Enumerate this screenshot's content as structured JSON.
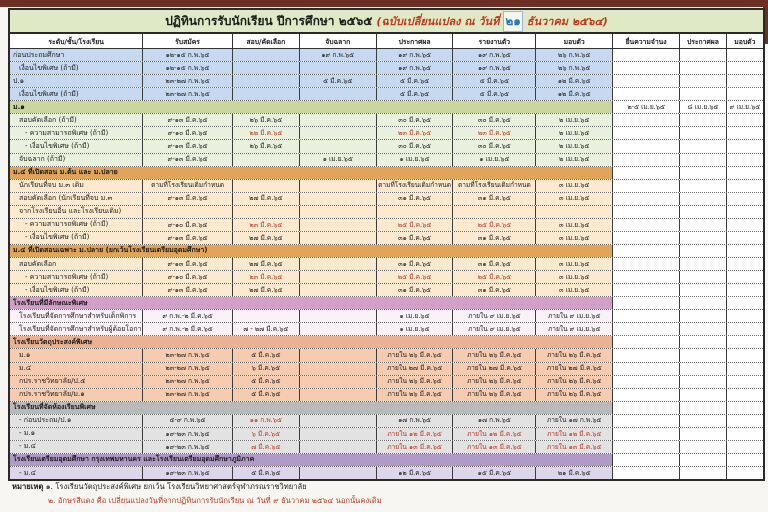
{
  "title": {
    "main": "ปฏิทินการรับนักเรียน  ปีการศึกษา ๒๕๖๕",
    "change_prefix": "(ฉบับเปลี่ยนแปลง ณ วันที่",
    "change_day": "๒๑",
    "change_suffix": "ธันวาคม ๒๕๖๔)"
  },
  "columns": [
    "ระดับ/ชั้น/โรงเรียน",
    "รับสมัคร",
    "สอบ/คัดเลือก",
    "จับฉลาก",
    "ประกาศผล",
    "รายงานตัว",
    "มอบตัว",
    "ยื่นความจำนง",
    "ประกาศผล",
    "มอบตัว"
  ],
  "colors": {
    "changed_date_red": "#bb3a23",
    "inserted_day_blue": "#2f76b5",
    "title_band_green": "#dfe9c6",
    "scan_edge_maroon": "#6d2f23",
    "sections": {
      "blue": "#c7d9f1",
      "green_head": "#c9d79f",
      "green": "#eaf0de",
      "orange_head": "#e2a458",
      "cream": "#fbead0",
      "pink_head": "#d39fc6",
      "pink": "#faf2f7",
      "salmon_head": "#eab193",
      "salmon": "#f7cbb0",
      "gray_head": "#b9b9b9",
      "gray": "#e2e2e2",
      "purple_head": "#b09bc8",
      "purple": "#ddd5ea"
    }
  },
  "rows": [
    {
      "style": "blue",
      "indent": 0,
      "label": "ก่อนประถมศึกษา",
      "cells": [
        "๑๒-๑๕ ก.พ.๖๕",
        "",
        "๑๙ ก.พ.๖๕",
        "๑๙ ก.พ.๖๕",
        "๑๙ ก.พ.๖๕",
        "๒๖ ก.พ.๖๕",
        "",
        "",
        ""
      ],
      "red": []
    },
    {
      "style": "blue",
      "indent": 1,
      "label": "เงื่อนไขพิเศษ (ถ้ามี)",
      "cells": [
        "๑๒-๑๕ ก.พ.๖๕",
        "",
        "",
        "๑๙ ก.พ.๖๕",
        "๑๙ ก.พ.๖๕",
        "๒๖ ก.พ.๖๕",
        "",
        "",
        ""
      ],
      "red": []
    },
    {
      "style": "blue",
      "indent": 0,
      "label": "ป.๑",
      "cells": [
        "๒๓-๒๗ ก.พ.๖๕",
        "",
        "๕ มี.ค.๖๕",
        "๕ มี.ค.๖๕",
        "๕ มี.ค.๖๕",
        "๑๒ มี.ค.๖๕",
        "",
        "",
        ""
      ],
      "red": []
    },
    {
      "style": "blue",
      "indent": 1,
      "label": "เงื่อนไขพิเศษ (ถ้ามี)",
      "cells": [
        "๒๓-๒๗ ก.พ.๖๕",
        "",
        "",
        "๕ มี.ค.๖๕",
        "๕ มี.ค.๖๕",
        "๑๒ มี.ค.๖๕",
        "",
        "",
        ""
      ],
      "red": []
    },
    {
      "type": "section",
      "style": "green_head",
      "label": "ม.๑",
      "tail": [
        "๒-๕ เม.ย.๖๕",
        "๘ เม.ย.๖๕",
        "๙ เม.ย.๖๕"
      ]
    },
    {
      "style": "green",
      "indent": 1,
      "label": "สอบคัดเลือก (ถ้ามี)",
      "cells": [
        "๙-๑๓ มี.ค.๖๕",
        "๒๖ มี.ค.๖๕",
        "",
        "๓๐ มี.ค.๖๕",
        "๓๐ มี.ค.๖๕",
        "๒ เม.ย.๖๕",
        "",
        "",
        ""
      ],
      "red": []
    },
    {
      "style": "green",
      "indent": 2,
      "label": "- ความสามารถพิเศษ  (ถ้ามี)",
      "cells": [
        "๙-๑๐ มี.ค.๖๕",
        "๒๒ มี.ค.๖๕",
        "",
        "๒๓ มี.ค.๖๕",
        "๒๓ มี.ค.๖๕",
        "๒ เม.ย.๖๕",
        "",
        "",
        ""
      ],
      "red": [
        1,
        3,
        4
      ]
    },
    {
      "style": "green",
      "indent": 2,
      "label": "- เงื่อนไขพิเศษ (ถ้ามี)",
      "cells": [
        "๙-๑๓ มี.ค.๖๕",
        "๒๖ มี.ค.๖๕",
        "",
        "๓๐ มี.ค.๖๕",
        "๓๐ มี.ค.๖๕",
        "๒ เม.ย.๖๕",
        "",
        "",
        ""
      ],
      "red": []
    },
    {
      "style": "green",
      "indent": 1,
      "label": "จับฉลาก (ถ้ามี)",
      "cells": [
        "๙-๑๓ มี.ค.๖๕",
        "",
        "๑ เม.ย.๖๕",
        "๑ เม.ย.๖๕",
        "๑ เม.ย.๖๕",
        "๒ เม.ย.๖๕",
        "",
        "",
        ""
      ],
      "red": []
    },
    {
      "type": "section",
      "style": "orange_head",
      "label": "ม.๔ ที่เปิดสอน ม.ต้น และ ม.ปลาย",
      "tail": [
        "",
        "",
        ""
      ]
    },
    {
      "style": "cream",
      "indent": 1,
      "label": "นักเรียนที่จบ ม.๓ เดิม",
      "cells": [
        "ตามที่โรงเรียนเดิมกำหนด",
        "",
        "",
        "ตามที่โรงเรียนเดิมกำหนด",
        "ตามที่โรงเรียนเดิมกำหนด",
        "๓ เม.ย.๖๕",
        "",
        "",
        ""
      ],
      "red": []
    },
    {
      "style": "cream",
      "indent": 1,
      "label": "สอบคัดเลือก (นักเรียนที่จบ ม.๓",
      "cells": [
        "๙-๑๓ มี.ค.๖๕",
        "๒๗ มี.ค.๖๕",
        "",
        "๓๑ มี.ค.๖๕",
        "๓๑ มี.ค.๖๕",
        "๓ เม.ย.๖๕",
        "",
        "",
        ""
      ],
      "red": []
    },
    {
      "style": "cream",
      "indent": 1,
      "label": "จากโรงเรียนอื่น และโรงเรียนเดิม)",
      "cells": [
        "",
        "",
        "",
        "",
        "",
        "",
        "",
        "",
        ""
      ],
      "red": []
    },
    {
      "style": "cream",
      "indent": 2,
      "label": "- ความสามารถพิเศษ  (ถ้ามี)",
      "cells": [
        "๙-๑๐ มี.ค.๖๕",
        "๒๓ มี.ค.๖๕",
        "",
        "๒๕ มี.ค.๖๕",
        "๒๕ มี.ค.๖๕",
        "๓ เม.ย.๖๕",
        "",
        "",
        ""
      ],
      "red": [
        1,
        3,
        4
      ]
    },
    {
      "style": "cream",
      "indent": 2,
      "label": "- เงื่อนไขพิเศษ (ถ้ามี)",
      "cells": [
        "๙-๑๓ มี.ค.๖๕",
        "๒๗ มี.ค.๖๕",
        "",
        "๓๑ มี.ค.๖๕",
        "๓๑ มี.ค.๖๕",
        "๓ เม.ย.๖๕",
        "",
        "",
        ""
      ],
      "red": []
    },
    {
      "type": "section",
      "style": "orange_head",
      "label": "ม.๔ ที่เปิดสอนเฉพาะ ม.ปลาย (ยกเว้นโรงเรียนเตรียมอุดมศึกษา)",
      "tail": [
        "",
        "",
        ""
      ]
    },
    {
      "style": "cream",
      "indent": 1,
      "label": "สอบคัดเลือก",
      "cells": [
        "๙-๑๓ มี.ค.๖๕",
        "๒๗ มี.ค.๖๕",
        "",
        "๓๑ มี.ค.๖๕",
        "๓๑ มี.ค.๖๕",
        "๓ เม.ย.๖๕",
        "",
        "",
        ""
      ],
      "red": []
    },
    {
      "style": "cream",
      "indent": 2,
      "label": "- ความสามารถพิเศษ  (ถ้ามี)",
      "cells": [
        "๙-๑๐ มี.ค.๖๕",
        "๒๓ มี.ค.๖๕",
        "",
        "๒๕ มี.ค.๖๕",
        "๒๕ มี.ค.๖๕",
        "๓ เม.ย.๖๕",
        "",
        "",
        ""
      ],
      "red": [
        1,
        3,
        4
      ]
    },
    {
      "style": "cream",
      "indent": 2,
      "label": "- เงื่อนไขพิเศษ (ถ้ามี)",
      "cells": [
        "๙-๑๓ มี.ค.๖๕",
        "๒๗ มี.ค.๖๕",
        "",
        "๓๑ มี.ค.๖๕",
        "๓๑ มี.ค.๖๕",
        "๓ เม.ย.๖๕",
        "",
        "",
        ""
      ],
      "red": []
    },
    {
      "type": "section",
      "style": "pink_head",
      "label": "โรงเรียนที่มีลักษณะพิเศษ",
      "tail": [
        "",
        "",
        ""
      ]
    },
    {
      "style": "pink",
      "indent": 1,
      "label": "โรงเรียนที่จัดการศึกษาสำหรับเด็กพิการ",
      "cells": [
        "๙ ก.พ.-๒ มี.ค.๖๕",
        "",
        "",
        "๑ เม.ย.๖๕",
        "ภายใน ๙ เม.ย.๖๕",
        "ภายใน ๙ เม.ย.๖๕",
        "",
        "",
        ""
      ],
      "red": []
    },
    {
      "style": "pink",
      "indent": 1,
      "label": "โรงเรียนที่จัดการศึกษาสำหรับผู้ด้อยโอกาส",
      "cells": [
        "๙ ก.พ.-๒ มี.ค.๖๕",
        "๗ - ๒๗ มี.ค.๖๕",
        "",
        "๑ เม.ย.๖๕",
        "ภายใน ๙ เม.ย.๖๕",
        "ภายใน ๙ เม.ย.๖๕",
        "",
        "",
        ""
      ],
      "red": []
    },
    {
      "type": "section",
      "style": "salmon_head",
      "label": "โรงเรียนวัตถุประสงค์พิเศษ",
      "tail": [
        "",
        "",
        ""
      ]
    },
    {
      "style": "salmon",
      "indent": 1,
      "label": "ม.๑",
      "cells": [
        "๒๓-๒๗ ก.พ.๖๕",
        "๕ มี.ค.๖๕",
        "",
        "ภายใน ๒๖ มี.ค.๖๕",
        "ภายใน ๒๖ มี.ค.๖๕",
        "ภายใน ๒๖ มี.ค.๖๕",
        "",
        "",
        ""
      ],
      "red": []
    },
    {
      "style": "salmon",
      "indent": 1,
      "label": "ม.๔",
      "cells": [
        "๒๓-๒๗ ก.พ.๖๕",
        "๖ มี.ค.๖๕",
        "",
        "ภายใน ๒๗ มี.ค.๖๕",
        "ภายใน ๒๗ มี.ค.๖๕",
        "ภายใน ๒๗ มี.ค.๖๕",
        "",
        "",
        ""
      ],
      "red": []
    },
    {
      "style": "salmon",
      "indent": 1,
      "label": "กปร.ราชวิทยาลัย/ป.๕",
      "cells": [
        "๒๓-๒๗ ก.พ.๖๕",
        "๕ มี.ค.๖๕",
        "",
        "ภายใน ๒๖ มี.ค.๖๕",
        "ภายใน ๒๖ มี.ค.๖๕",
        "ภายใน ๒๖ มี.ค.๖๕",
        "",
        "",
        ""
      ],
      "red": []
    },
    {
      "style": "salmon",
      "indent": 1,
      "label": "กปร.ราชวิทยาลัย/ม.๑",
      "cells": [
        "๒๓-๒๗ ก.พ.๖๕",
        "๕ มี.ค.๖๕",
        "",
        "ภายใน ๒๖ มี.ค.๖๕",
        "ภายใน ๒๖ มี.ค.๖๕",
        "ภายใน ๒๖ มี.ค.๖๕",
        "",
        "",
        ""
      ],
      "red": []
    },
    {
      "type": "section",
      "style": "gray_head",
      "label": "โรงเรียนที่จัดห้องเรียนพิเศษ",
      "tail": [
        "",
        "",
        ""
      ]
    },
    {
      "style": "gray",
      "indent": 1,
      "label": "- ก่อนประถม/ป.๑",
      "cells": [
        "๕-๙ ก.พ.๖๕",
        "๑๑ ก.พ.๖๕",
        "",
        "๑๗ ก.พ.๖๕",
        "๑๗ ก.พ.๖๕",
        "ภายใน ๑๗ ก.พ.๖๕",
        "",
        "",
        ""
      ],
      "red": [
        1
      ]
    },
    {
      "style": "gray",
      "indent": 1,
      "label": "- ม.๑",
      "cells": [
        "๑๙-๒๓ ก.พ.๖๕",
        "๖ มี.ค.๖๕",
        "",
        "ภายใน ๑๒ มี.ค.๖๕",
        "ภายใน ๑๒ มี.ค.๖๕",
        "ภายใน ๑๒ มี.ค.๖๕",
        "",
        "",
        ""
      ],
      "red": [
        1,
        3,
        4,
        5
      ]
    },
    {
      "style": "gray",
      "indent": 1,
      "label": "- ม.๔",
      "cells": [
        "๑๙-๒๓ ก.พ.๖๕",
        "๗ มี.ค.๖๕",
        "",
        "ภายใน ๑๓ มี.ค.๖๕",
        "ภายใน ๑๓ มี.ค.๖๕",
        "ภายใน ๑๓ มี.ค.๖๕",
        "",
        "",
        ""
      ],
      "red": [
        1,
        3,
        4,
        5
      ]
    },
    {
      "type": "section",
      "style": "purple_head",
      "label": "โรงเรียนเตรียมอุดมศึกษา กรุงเทพมหานคร และโรงเรียนเตรียมอุดมศึกษาภูมิภาค",
      "tail": [
        "",
        "",
        ""
      ]
    },
    {
      "style": "purple",
      "indent": 1,
      "label": "- ม.๔",
      "cells": [
        "๑๙-๒๓ ก.พ.๖๕",
        "๕ มี.ค.๖๕",
        "",
        "๑๒ มี.ค.๖๕",
        "๑๕ มี.ค.๖๕",
        "๒๑ มี.ค.๖๕",
        "",
        "",
        ""
      ],
      "red": []
    }
  ],
  "notes": {
    "label": "หมายเหตุ",
    "note1": "๑. โรงเรียนวัตถุประสงค์พิเศษ ยกเว้น โรงเรียนวิทยาศาสตร์จุฬาภรณราชวิทยาลัย",
    "note2": "๒. อักษรสีแดง คือ เปลี่ยนแปลงวันที่จากปฏิทินการรับนักเรียน ณ วันที่ ๙ ธันวาคม ๒๕๖๔ นอกนั้นคงเดิม"
  }
}
